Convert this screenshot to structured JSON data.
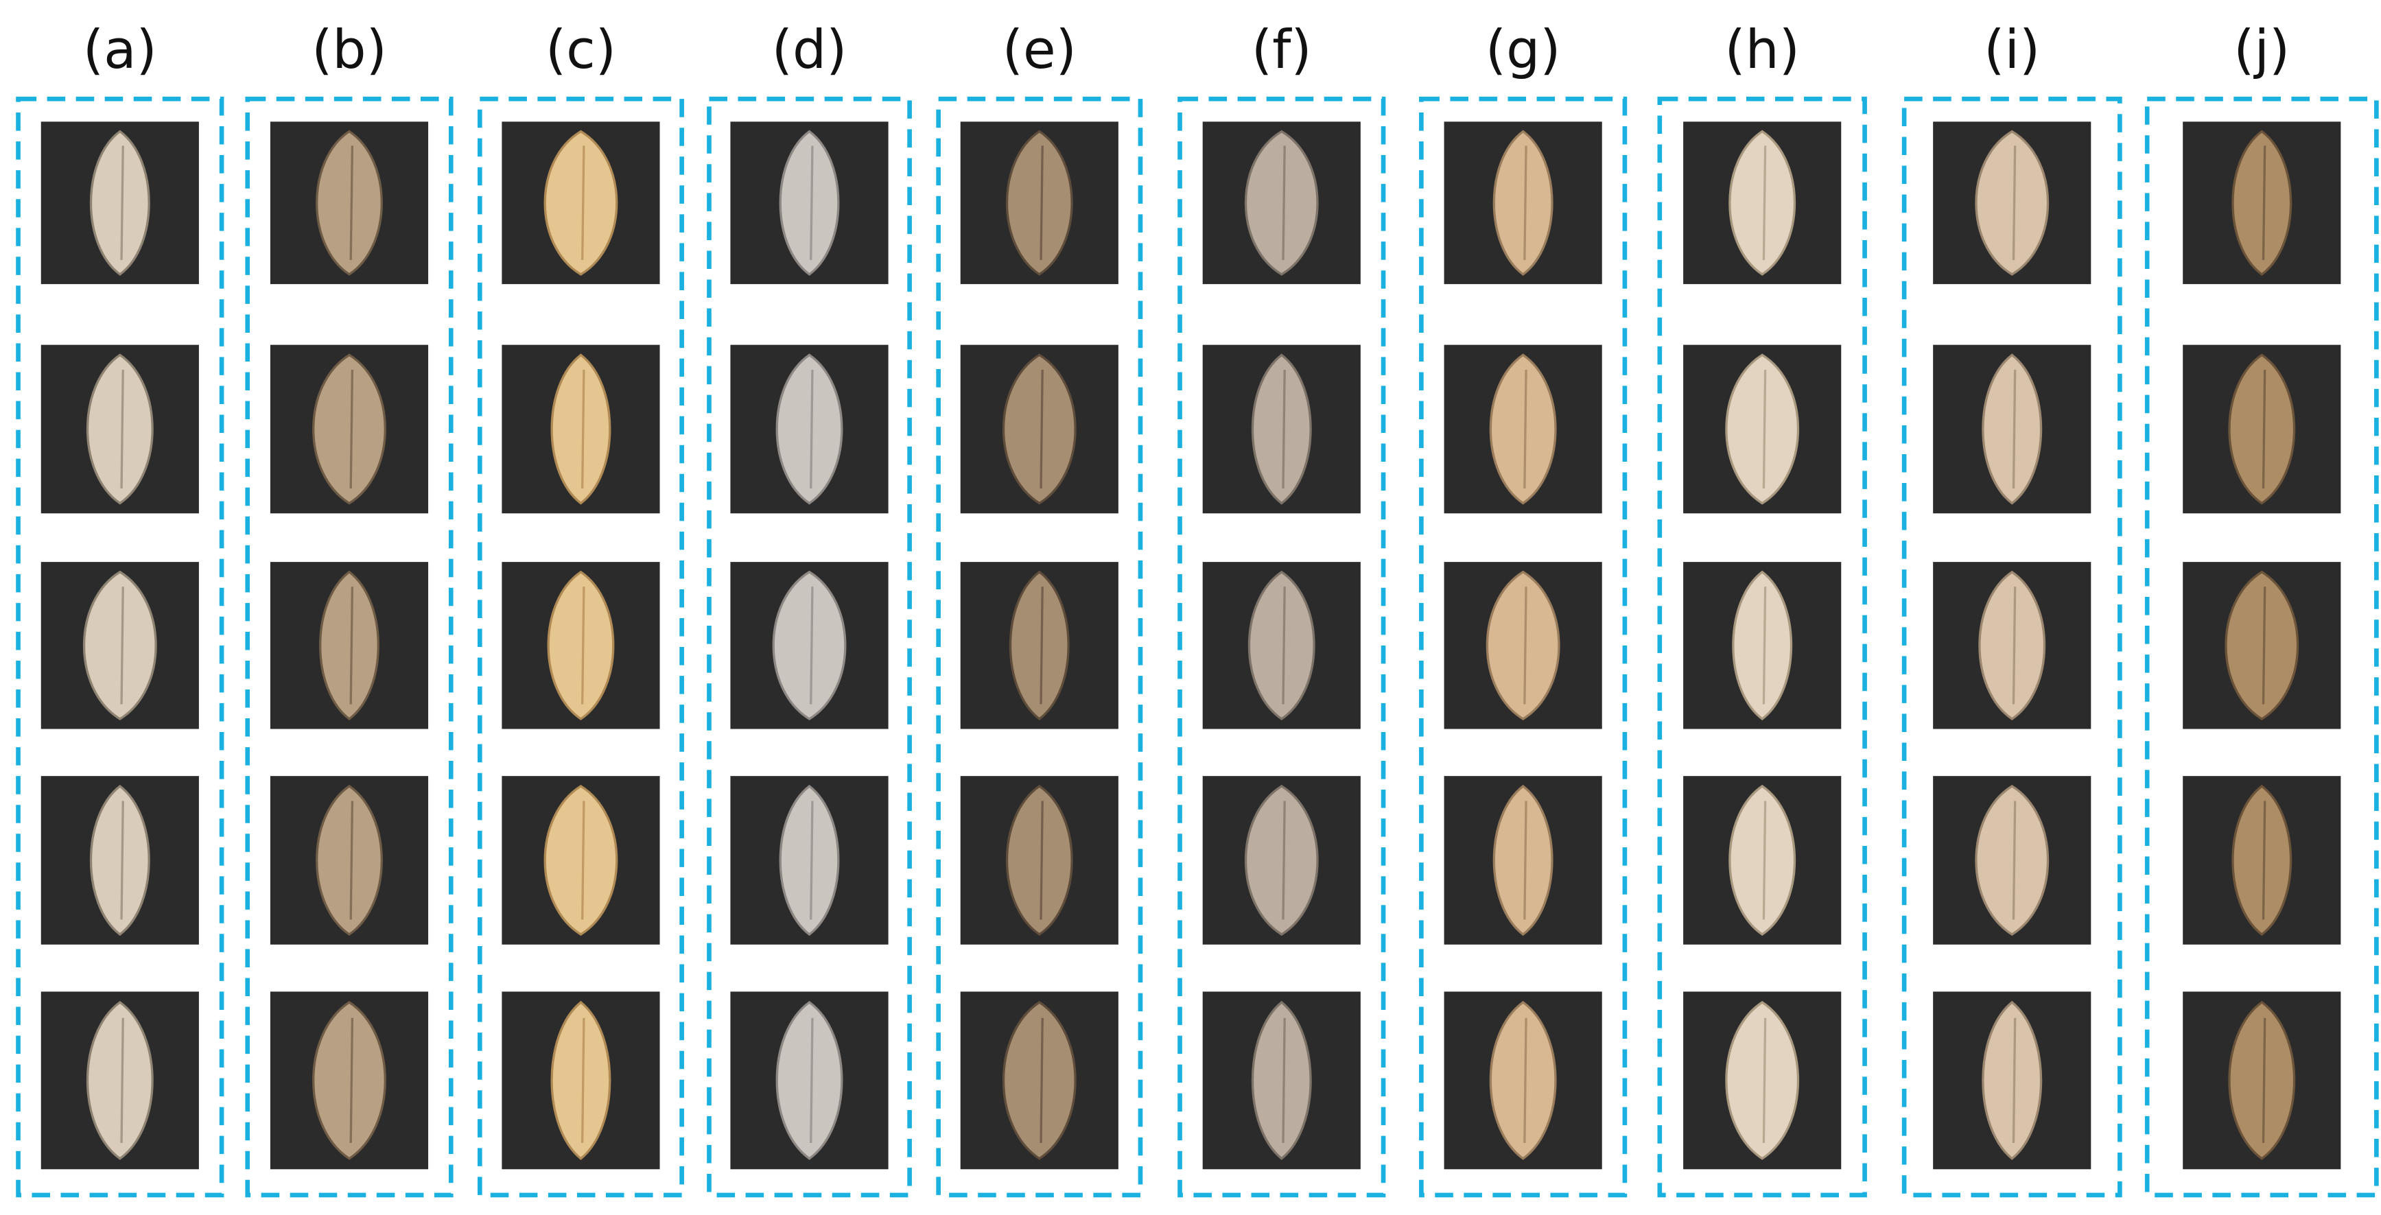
{
  "columns": [
    {
      "label": "(a)"
    },
    {
      "label": "(b)"
    },
    {
      "label": "(c)"
    },
    {
      "label": "(d)"
    },
    {
      "label": "(e)"
    },
    {
      "label": "(f)"
    },
    {
      "label": "(g)"
    },
    {
      "label": "(h)"
    },
    {
      "label": "(i)"
    },
    {
      "label": "(j)"
    }
  ]
}
